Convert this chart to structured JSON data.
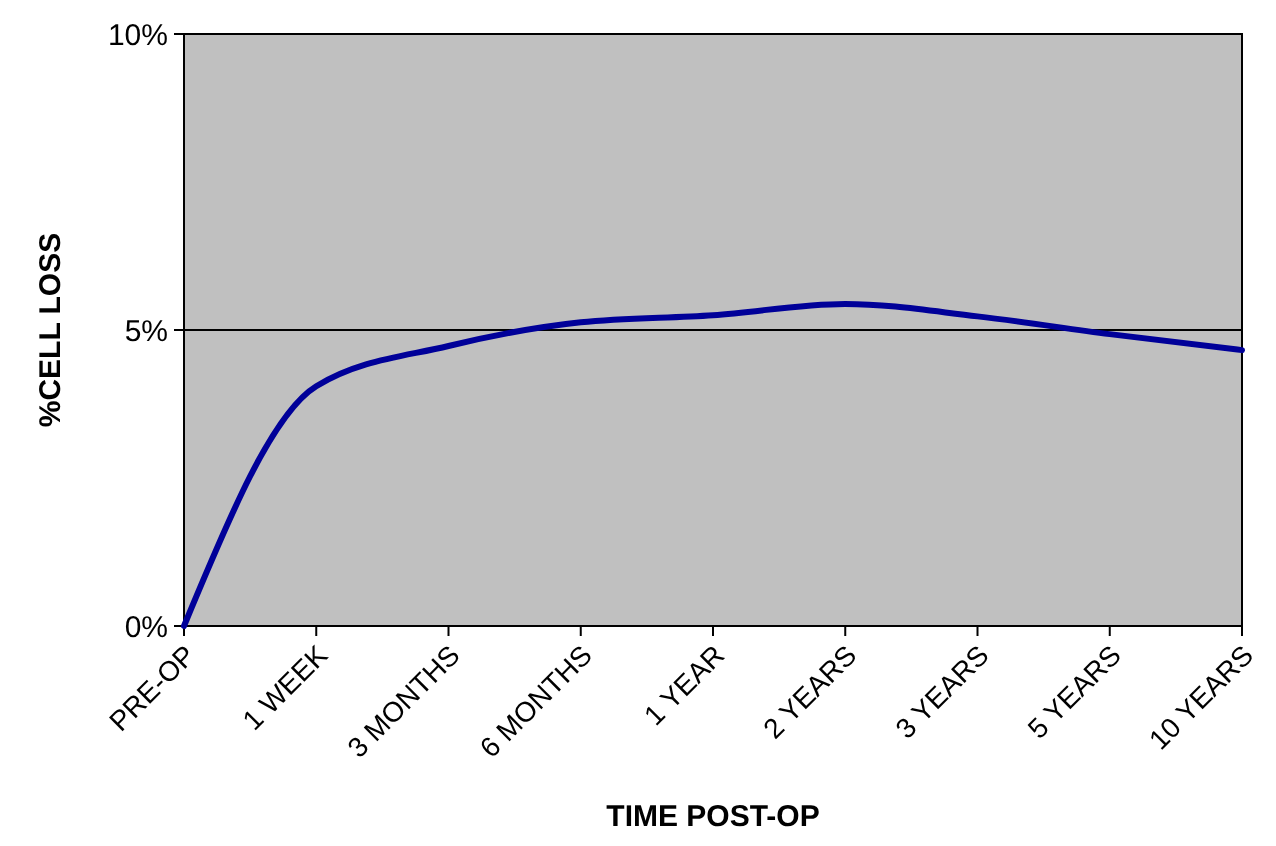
{
  "chart_data": {
    "type": "line",
    "xlabel": "TIME POST-OP",
    "ylabel": "%CELL LOSS",
    "categories": [
      "PRE-OP",
      "1 WEEK",
      "3 MONTHS",
      "6 MONTHS",
      "1 YEAR",
      "2 YEARS",
      "3 YEARS",
      "5 YEARS",
      "10 YEARS"
    ],
    "series": [
      {
        "color": "#000099",
        "values": [
          0,
          4.05,
          4.73,
          5.13,
          5.25,
          5.44,
          5.23,
          4.93,
          4.66
        ]
      }
    ],
    "ylim": [
      0,
      10
    ],
    "yticks": [
      {
        "value": 0,
        "label": "0%"
      },
      {
        "value": 5,
        "label": "5%"
      },
      {
        "value": 10,
        "label": "10%"
      }
    ],
    "grid": "y",
    "marker": "none",
    "line_style": "solid"
  }
}
